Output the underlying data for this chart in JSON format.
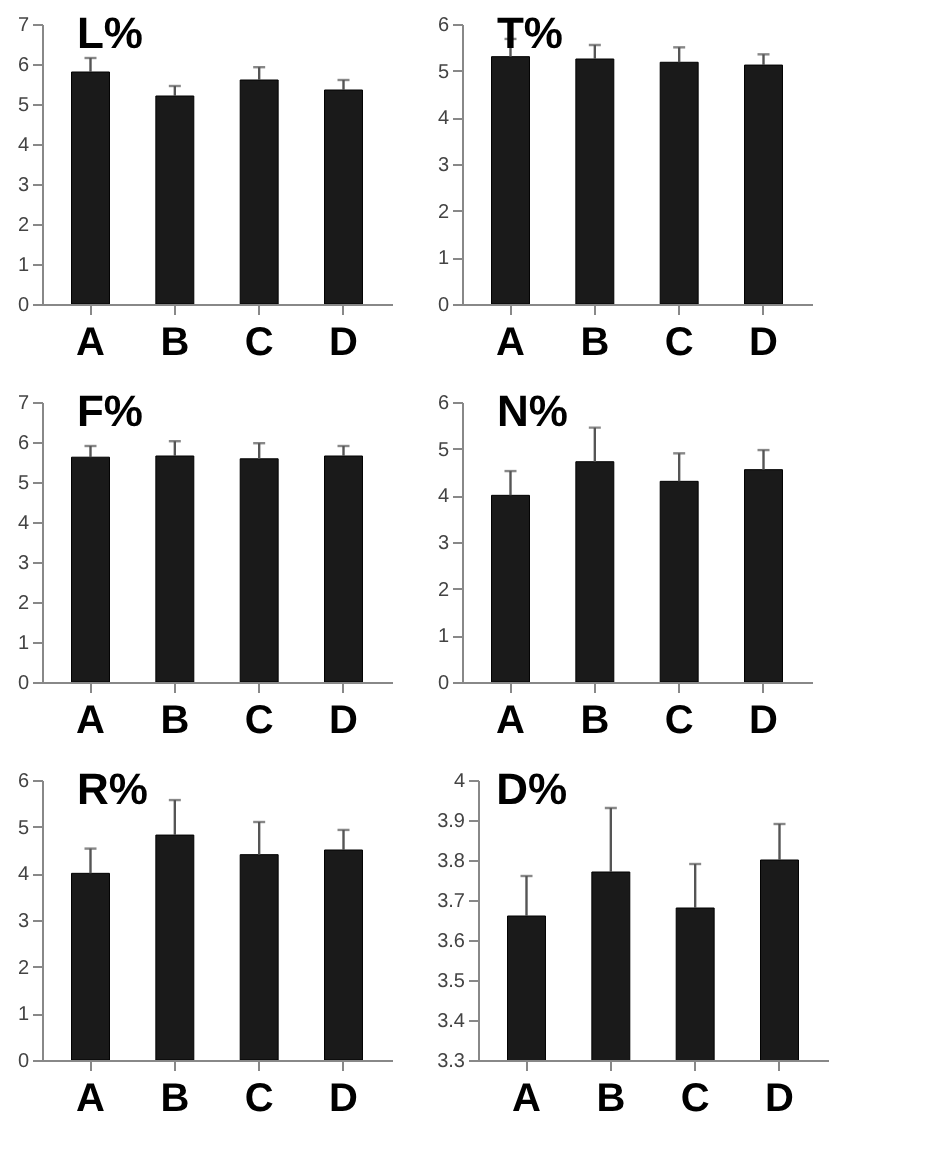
{
  "chart_data": [
    {
      "type": "bar",
      "title": "L%",
      "categories": [
        "A",
        "B",
        "C",
        "D"
      ],
      "series": [
        {
          "color": "#1a1a1a",
          "values": [
            5.8,
            5.2,
            5.6,
            5.35
          ],
          "errors": [
            [
              5.8,
              6.15
            ],
            [
              5.2,
              5.45
            ],
            [
              5.6,
              5.92
            ],
            [
              5.35,
              5.6
            ]
          ]
        }
      ],
      "ylim": [
        0,
        7
      ],
      "yticks": [
        0,
        1,
        2,
        3,
        4,
        5,
        6,
        7
      ],
      "grid": false
    },
    {
      "type": "bar",
      "title": "T%",
      "categories": [
        "A",
        "B",
        "C",
        "D"
      ],
      "series": [
        {
          "color": "#1a1a1a",
          "values": [
            5.3,
            5.25,
            5.18,
            5.12
          ],
          "errors": [
            [
              5.3,
              5.68
            ],
            [
              5.25,
              5.55
            ],
            [
              5.18,
              5.5
            ],
            [
              5.12,
              5.35
            ]
          ]
        }
      ],
      "ylim": [
        0,
        6
      ],
      "yticks": [
        0,
        1,
        2,
        3,
        4,
        5,
        6
      ],
      "grid": false
    },
    {
      "type": "bar",
      "title": "F%",
      "categories": [
        "A",
        "B",
        "C",
        "D"
      ],
      "series": [
        {
          "color": "#1a1a1a",
          "values": [
            5.62,
            5.65,
            5.58,
            5.65
          ],
          "errors": [
            [
              5.62,
              5.9
            ],
            [
              5.65,
              6.02
            ],
            [
              5.58,
              5.97
            ],
            [
              5.65,
              5.9
            ]
          ]
        }
      ],
      "ylim": [
        0,
        7
      ],
      "yticks": [
        0,
        1,
        2,
        3,
        4,
        5,
        6,
        7
      ],
      "grid": false
    },
    {
      "type": "bar",
      "title": "N%",
      "categories": [
        "A",
        "B",
        "C",
        "D"
      ],
      "series": [
        {
          "color": "#1a1a1a",
          "values": [
            4.0,
            4.72,
            4.3,
            4.55
          ],
          "errors": [
            [
              4.0,
              4.52
            ],
            [
              4.72,
              5.45
            ],
            [
              4.3,
              4.9
            ],
            [
              4.55,
              4.97
            ]
          ]
        }
      ],
      "ylim": [
        0,
        6
      ],
      "yticks": [
        0,
        1,
        2,
        3,
        4,
        5,
        6
      ],
      "grid": false
    },
    {
      "type": "bar",
      "title": "R%",
      "categories": [
        "A",
        "B",
        "C",
        "D"
      ],
      "series": [
        {
          "color": "#1a1a1a",
          "values": [
            4.0,
            4.82,
            4.4,
            4.5
          ],
          "errors": [
            [
              4.0,
              4.53
            ],
            [
              4.82,
              5.57
            ],
            [
              4.4,
              5.1
            ],
            [
              4.5,
              4.93
            ]
          ]
        }
      ],
      "ylim": [
        0,
        6
      ],
      "yticks": [
        0,
        1,
        2,
        3,
        4,
        5,
        6
      ],
      "grid": false
    },
    {
      "type": "bar",
      "title": "D%",
      "categories": [
        "A",
        "B",
        "C",
        "D"
      ],
      "series": [
        {
          "color": "#1a1a1a",
          "values": [
            3.66,
            3.77,
            3.68,
            3.8
          ],
          "errors": [
            [
              3.66,
              3.76
            ],
            [
              3.77,
              3.93
            ],
            [
              3.68,
              3.79
            ],
            [
              3.8,
              3.89
            ]
          ]
        }
      ],
      "ylim": [
        3.3,
        4
      ],
      "yticks": [
        3.3,
        3.4,
        3.5,
        3.6,
        3.7,
        3.8,
        3.9,
        4
      ],
      "grid": false
    }
  ]
}
